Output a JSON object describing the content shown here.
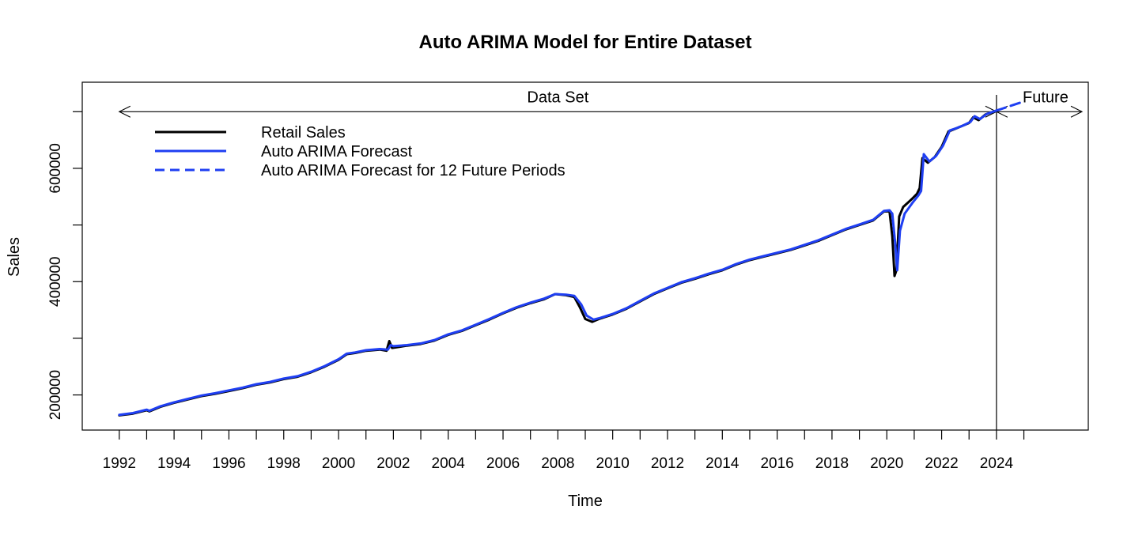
{
  "chart_data": {
    "type": "line",
    "title": "Auto ARIMA Model for Entire Dataset",
    "xlabel": "Time",
    "ylabel": "Sales",
    "xlim": [
      1990.65,
      2027.35
    ],
    "ylim": [
      138000,
      752000
    ],
    "x_ticks": [
      1992,
      1993,
      1994,
      1995,
      1996,
      1997,
      1998,
      1999,
      2000,
      2001,
      2002,
      2003,
      2004,
      2005,
      2006,
      2007,
      2008,
      2009,
      2010,
      2011,
      2012,
      2013,
      2014,
      2015,
      2016,
      2017,
      2018,
      2019,
      2020,
      2021,
      2022,
      2023,
      2024,
      2025
    ],
    "x_tick_labels": [
      "1992",
      "1994",
      "1996",
      "1998",
      "2000",
      "2002",
      "2004",
      "2006",
      "2008",
      "2010",
      "2012",
      "2014",
      "2016",
      "2018",
      "2020",
      "2022",
      "2024"
    ],
    "y_ticks": [
      200000,
      300000,
      400000,
      500000,
      600000,
      700000
    ],
    "y_tick_labels": [
      "200000",
      "400000",
      "600000"
    ],
    "grid": false,
    "legend_position": "top-left",
    "annotations": {
      "data_set_label": "Data Set",
      "future_label": "Future",
      "split_year": 2024,
      "arrow_level": 700000
    },
    "series": [
      {
        "name": "Retail Sales",
        "color": "#000000",
        "style": "solid",
        "points": [
          [
            1992.0,
            164000
          ],
          [
            1992.5,
            167000
          ],
          [
            1993.0,
            173000
          ],
          [
            1993.1,
            171000
          ],
          [
            1993.5,
            179000
          ],
          [
            1994.0,
            186000
          ],
          [
            1994.5,
            192000
          ],
          [
            1995.0,
            198000
          ],
          [
            1995.5,
            202000
          ],
          [
            1996.0,
            207000
          ],
          [
            1996.5,
            212000
          ],
          [
            1997.0,
            218000
          ],
          [
            1997.5,
            222000
          ],
          [
            1998.0,
            228000
          ],
          [
            1998.5,
            232000
          ],
          [
            1999.0,
            240000
          ],
          [
            1999.5,
            250000
          ],
          [
            2000.0,
            262000
          ],
          [
            2000.3,
            272000
          ],
          [
            2000.6,
            274000
          ],
          [
            2001.0,
            278000
          ],
          [
            2001.5,
            280000
          ],
          [
            2001.75,
            278000
          ],
          [
            2001.85,
            295000
          ],
          [
            2001.95,
            283000
          ],
          [
            2002.5,
            287000
          ],
          [
            2003.0,
            290000
          ],
          [
            2003.5,
            296000
          ],
          [
            2004.0,
            306000
          ],
          [
            2004.5,
            313000
          ],
          [
            2005.0,
            323000
          ],
          [
            2005.5,
            333000
          ],
          [
            2006.0,
            344000
          ],
          [
            2006.5,
            354000
          ],
          [
            2007.0,
            362000
          ],
          [
            2007.5,
            369000
          ],
          [
            2007.9,
            378000
          ],
          [
            2008.3,
            376000
          ],
          [
            2008.6,
            373000
          ],
          [
            2008.8,
            355000
          ],
          [
            2009.0,
            334000
          ],
          [
            2009.25,
            329000
          ],
          [
            2009.5,
            334000
          ],
          [
            2010.0,
            342000
          ],
          [
            2010.5,
            352000
          ],
          [
            2011.0,
            365000
          ],
          [
            2011.5,
            378000
          ],
          [
            2012.0,
            388000
          ],
          [
            2012.5,
            398000
          ],
          [
            2013.0,
            405000
          ],
          [
            2013.5,
            413000
          ],
          [
            2014.0,
            420000
          ],
          [
            2014.5,
            430000
          ],
          [
            2015.0,
            438000
          ],
          [
            2015.5,
            444000
          ],
          [
            2016.0,
            450000
          ],
          [
            2016.5,
            456000
          ],
          [
            2017.0,
            464000
          ],
          [
            2017.5,
            472000
          ],
          [
            2018.0,
            482000
          ],
          [
            2018.5,
            492000
          ],
          [
            2019.0,
            500000
          ],
          [
            2019.5,
            508000
          ],
          [
            2019.9,
            524000
          ],
          [
            2020.1,
            524000
          ],
          [
            2020.2,
            480000
          ],
          [
            2020.28,
            410000
          ],
          [
            2020.35,
            420000
          ],
          [
            2020.45,
            515000
          ],
          [
            2020.6,
            532000
          ],
          [
            2020.9,
            545000
          ],
          [
            2021.1,
            555000
          ],
          [
            2021.2,
            565000
          ],
          [
            2021.3,
            618000
          ],
          [
            2021.5,
            610000
          ],
          [
            2021.75,
            620000
          ],
          [
            2022.0,
            638000
          ],
          [
            2022.25,
            665000
          ],
          [
            2022.5,
            670000
          ],
          [
            2022.75,
            675000
          ],
          [
            2023.0,
            680000
          ],
          [
            2023.15,
            690000
          ],
          [
            2023.35,
            685000
          ],
          [
            2023.6,
            695000
          ],
          [
            2023.97,
            701000
          ]
        ]
      },
      {
        "name": "Auto ARIMA Forecast",
        "color": "#1f3ff2",
        "style": "solid",
        "points": [
          [
            1992.0,
            165000
          ],
          [
            1992.5,
            168000
          ],
          [
            1993.0,
            174000
          ],
          [
            1993.1,
            172000
          ],
          [
            1993.5,
            180000
          ],
          [
            1994.0,
            187000
          ],
          [
            1994.5,
            193000
          ],
          [
            1995.0,
            199000
          ],
          [
            1995.5,
            203000
          ],
          [
            1996.0,
            208000
          ],
          [
            1996.5,
            213000
          ],
          [
            1997.0,
            219000
          ],
          [
            1997.5,
            223000
          ],
          [
            1998.0,
            229000
          ],
          [
            1998.5,
            233000
          ],
          [
            1999.0,
            241000
          ],
          [
            1999.5,
            251000
          ],
          [
            2000.0,
            263000
          ],
          [
            2000.3,
            273000
          ],
          [
            2000.6,
            275000
          ],
          [
            2001.0,
            279000
          ],
          [
            2001.5,
            281000
          ],
          [
            2001.8,
            280000
          ],
          [
            2001.9,
            288000
          ],
          [
            2002.0,
            286000
          ],
          [
            2002.5,
            288000
          ],
          [
            2003.0,
            291000
          ],
          [
            2003.5,
            297000
          ],
          [
            2004.0,
            307000
          ],
          [
            2004.5,
            314000
          ],
          [
            2005.0,
            324000
          ],
          [
            2005.5,
            334000
          ],
          [
            2006.0,
            345000
          ],
          [
            2006.5,
            355000
          ],
          [
            2007.0,
            363000
          ],
          [
            2007.5,
            370000
          ],
          [
            2007.9,
            378000
          ],
          [
            2008.3,
            377000
          ],
          [
            2008.6,
            375000
          ],
          [
            2008.85,
            360000
          ],
          [
            2009.05,
            340000
          ],
          [
            2009.3,
            333000
          ],
          [
            2009.55,
            336000
          ],
          [
            2010.0,
            343000
          ],
          [
            2010.5,
            353000
          ],
          [
            2011.0,
            366000
          ],
          [
            2011.5,
            379000
          ],
          [
            2012.0,
            389000
          ],
          [
            2012.5,
            399000
          ],
          [
            2013.0,
            406000
          ],
          [
            2013.5,
            414000
          ],
          [
            2014.0,
            421000
          ],
          [
            2014.5,
            431000
          ],
          [
            2015.0,
            439000
          ],
          [
            2015.5,
            445000
          ],
          [
            2016.0,
            451000
          ],
          [
            2016.5,
            457000
          ],
          [
            2017.0,
            465000
          ],
          [
            2017.5,
            473000
          ],
          [
            2018.0,
            483000
          ],
          [
            2018.5,
            493000
          ],
          [
            2019.0,
            501000
          ],
          [
            2019.5,
            509000
          ],
          [
            2019.9,
            525000
          ],
          [
            2020.1,
            526000
          ],
          [
            2020.2,
            520000
          ],
          [
            2020.3,
            470000
          ],
          [
            2020.38,
            420000
          ],
          [
            2020.48,
            490000
          ],
          [
            2020.65,
            520000
          ],
          [
            2020.95,
            540000
          ],
          [
            2021.15,
            552000
          ],
          [
            2021.25,
            560000
          ],
          [
            2021.35,
            625000
          ],
          [
            2021.55,
            612000
          ],
          [
            2021.8,
            622000
          ],
          [
            2022.05,
            640000
          ],
          [
            2022.3,
            667000
          ],
          [
            2022.55,
            671000
          ],
          [
            2022.8,
            676000
          ],
          [
            2023.05,
            682000
          ],
          [
            2023.2,
            692000
          ],
          [
            2023.4,
            687000
          ],
          [
            2023.65,
            696000
          ],
          [
            2024.0,
            702000
          ]
        ]
      },
      {
        "name": "Auto ARIMA Forecast for 12 Future Periods",
        "color": "#1f3ff2",
        "style": "dashed",
        "points": [
          [
            2024.0,
            702000
          ],
          [
            2024.25,
            706000
          ],
          [
            2024.5,
            710000
          ],
          [
            2024.75,
            714000
          ],
          [
            2025.0,
            718000
          ]
        ]
      }
    ]
  }
}
